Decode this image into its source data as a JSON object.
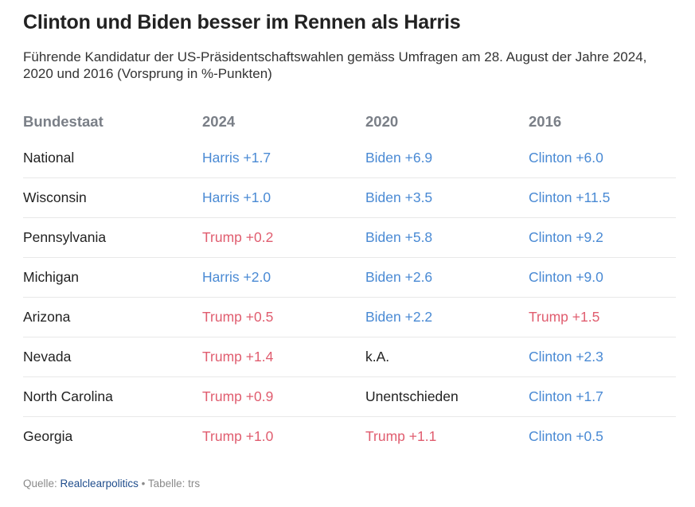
{
  "title": "Clinton und Biden besser im Rennen als Harris",
  "subtitle": "Führende Kandidatur der US-Präsidentschaftswahlen gemäss Umfragen am 28. August der Jahre 2024, 2020 und 2016 (Vorsprung in %-Punkten)",
  "colors": {
    "democrat": "#4a8ad4",
    "republican": "#e05d6f",
    "neutral": "#222222",
    "header": "#7a7f87"
  },
  "chart_data": {
    "type": "table",
    "title": "Clinton und Biden besser im Rennen als Harris",
    "columns": [
      "Bundestaat",
      "2024",
      "2020",
      "2016"
    ],
    "rows": [
      {
        "state": "National",
        "y2024": {
          "text": "Harris +1.7",
          "party": "democrat"
        },
        "y2020": {
          "text": "Biden +6.9",
          "party": "democrat"
        },
        "y2016": {
          "text": "Clinton +6.0",
          "party": "democrat"
        }
      },
      {
        "state": "Wisconsin",
        "y2024": {
          "text": "Harris +1.0",
          "party": "democrat"
        },
        "y2020": {
          "text": "Biden +3.5",
          "party": "democrat"
        },
        "y2016": {
          "text": "Clinton +11.5",
          "party": "democrat"
        }
      },
      {
        "state": "Pennsylvania",
        "y2024": {
          "text": "Trump +0.2",
          "party": "republican"
        },
        "y2020": {
          "text": "Biden +5.8",
          "party": "democrat"
        },
        "y2016": {
          "text": "Clinton +9.2",
          "party": "democrat"
        }
      },
      {
        "state": "Michigan",
        "y2024": {
          "text": "Harris +2.0",
          "party": "democrat"
        },
        "y2020": {
          "text": "Biden +2.6",
          "party": "democrat"
        },
        "y2016": {
          "text": "Clinton +9.0",
          "party": "democrat"
        }
      },
      {
        "state": "Arizona",
        "y2024": {
          "text": "Trump +0.5",
          "party": "republican"
        },
        "y2020": {
          "text": "Biden +2.2",
          "party": "democrat"
        },
        "y2016": {
          "text": "Trump +1.5",
          "party": "republican"
        }
      },
      {
        "state": "Nevada",
        "y2024": {
          "text": "Trump +1.4",
          "party": "republican"
        },
        "y2020": {
          "text": "k.A.",
          "party": "neutral"
        },
        "y2016": {
          "text": "Clinton +2.3",
          "party": "democrat"
        }
      },
      {
        "state": "North Carolina",
        "y2024": {
          "text": "Trump +0.9",
          "party": "republican"
        },
        "y2020": {
          "text": "Unentschieden",
          "party": "neutral"
        },
        "y2016": {
          "text": "Clinton +1.7",
          "party": "democrat"
        }
      },
      {
        "state": "Georgia",
        "y2024": {
          "text": "Trump +1.0",
          "party": "republican"
        },
        "y2020": {
          "text": "Trump +1.1",
          "party": "republican"
        },
        "y2016": {
          "text": "Clinton +0.5",
          "party": "democrat"
        }
      }
    ]
  },
  "source": {
    "label": "Quelle:",
    "link_text": "Realclearpolitics",
    "separator": "•",
    "credit": "Tabelle: trs"
  }
}
